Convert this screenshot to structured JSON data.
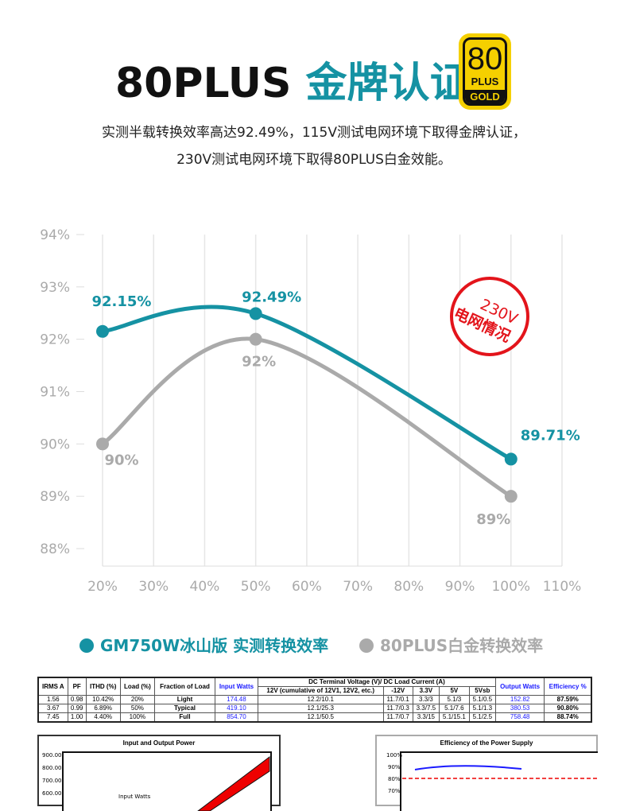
{
  "header": {
    "title_a": "80PLUS ",
    "title_b": "金牌认证",
    "logo": {
      "number": "80",
      "plus": "PLUS",
      "tier": "GOLD"
    },
    "line1": "实测半载转换效率高达92.49%，115V测试电网环境下取得金牌认证，",
    "line2": "230V测试电网环境下取得80PLUS白金效能。"
  },
  "stamp": {
    "line1": "230V",
    "line2": "电网情况"
  },
  "colors": {
    "primary": "#1592a3",
    "secondary": "#aaaaaa",
    "stamp": "#e3141b"
  },
  "chart_data": {
    "type": "line",
    "x": [
      20,
      50,
      100
    ],
    "xlim": [
      20,
      110
    ],
    "ylim": [
      88,
      94
    ],
    "xticks": [
      "20%",
      "30%",
      "40%",
      "50%",
      "60%",
      "70%",
      "80%",
      "90%",
      "100%",
      "110%"
    ],
    "yticks": [
      "94%",
      "93%",
      "92%",
      "91%",
      "90%",
      "89%",
      "88%"
    ],
    "series": [
      {
        "name": "GM750W冰山版 实测转换效率",
        "values": [
          92.15,
          92.49,
          89.71
        ],
        "labels": [
          "92.15%",
          "92.49%",
          "89.71%"
        ]
      },
      {
        "name": "80PLUS白金转换效率",
        "values": [
          90,
          92,
          89
        ],
        "labels": [
          "90%",
          "92%",
          "89%"
        ]
      }
    ],
    "legend": "bottom",
    "grid": true
  },
  "table": {
    "headers": [
      "IRMS A",
      "PF",
      "ITHD (%)",
      "Load (%)",
      "Fraction of Load",
      "Input Watts",
      "DC Terminal Voltage (V)/ DC Load Current (A)",
      "Output Watts",
      "Efficiency %"
    ],
    "subheaders": [
      "12V (cumulative of 12V1, 12V2, etc.)",
      "-12V",
      "3.3V",
      "5V",
      "5Vsb"
    ],
    "rows": [
      [
        "1.56",
        "0.98",
        "10.42%",
        "20%",
        "Light",
        "174.48",
        "12.2/10.1",
        "11.7/0.1",
        "3.3/3",
        "5.1/3",
        "5.1/0.5",
        "152.82",
        "87.59%"
      ],
      [
        "3.67",
        "0.99",
        "6.89%",
        "50%",
        "Typical",
        "419.10",
        "12.1/25.3",
        "11.7/0.3",
        "3.3/7.5",
        "5.1/7.6",
        "5.1/1.3",
        "380.53",
        "90.80%"
      ],
      [
        "7.45",
        "1.00",
        "4.40%",
        "100%",
        "Full",
        "854.70",
        "12.1/50.5",
        "11.7/0.7",
        "3.3/15",
        "5.1/15.1",
        "5.1/2.5",
        "758.48",
        "88.74%"
      ]
    ]
  },
  "mini_charts": [
    {
      "title": "Input and Output Power",
      "yticks": [
        "900.00",
        "800.00",
        "700.00",
        "600.00"
      ],
      "label": "Input Watts"
    },
    {
      "title": "Efficiency of the Power Supply",
      "yticks": [
        "100%",
        "90%",
        "80%",
        "70%"
      ]
    }
  ]
}
